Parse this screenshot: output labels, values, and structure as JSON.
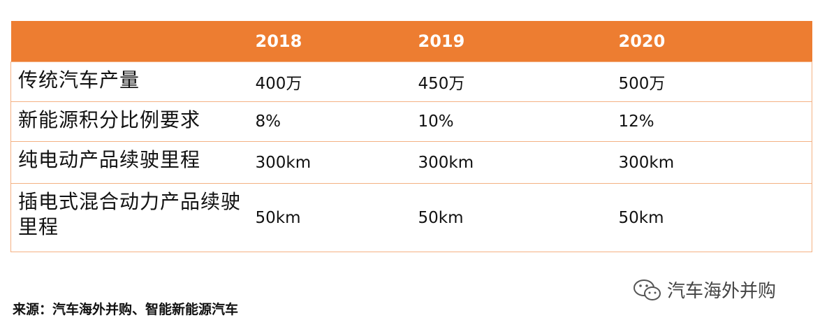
{
  "table": {
    "header": [
      "2018",
      "2019",
      "2020"
    ],
    "rows": [
      [
        "传统汽车产量",
        "400万",
        "450万",
        "500万"
      ],
      [
        "新能源积分比例要求",
        "8%",
        "10%",
        "12%"
      ],
      [
        "纯电动产品续驶里程",
        "300km",
        "300km",
        "300km"
      ],
      [
        "插电式混合动力产品续驶里程",
        "50km",
        "50km",
        "50km"
      ]
    ]
  },
  "source": "来源：汽车海外并购、智能新能源汽车",
  "watermark": "汽车海外并购"
}
